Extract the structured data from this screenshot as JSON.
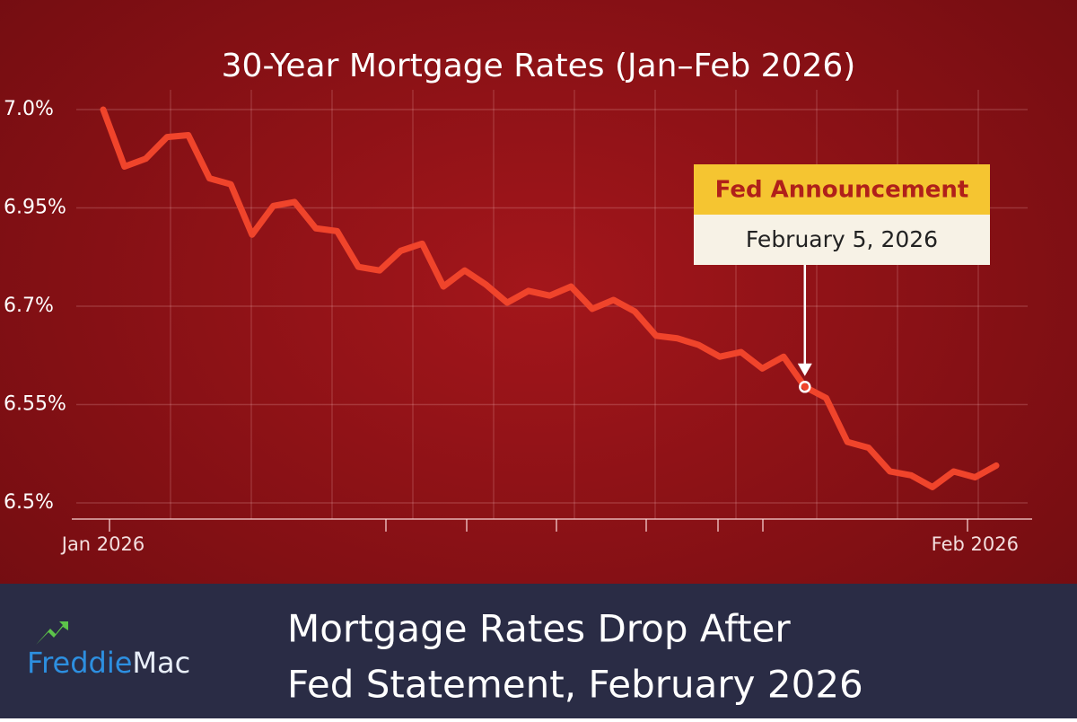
{
  "chart_data": {
    "type": "line",
    "title": "30-Year Mortgage Rates (Jan–Feb 2026)",
    "categories": [
      "Jan 2026",
      null,
      null,
      null,
      null,
      null,
      null,
      null,
      null,
      null,
      null,
      null,
      null,
      null,
      null,
      null,
      null,
      null,
      null,
      null,
      null,
      null,
      null,
      null,
      null,
      null,
      null,
      null,
      null,
      null,
      null,
      null,
      null,
      null,
      null,
      null,
      null,
      null,
      null,
      null,
      null,
      "Feb 2026",
      null
    ],
    "series": [
      {
        "name": "30-Year Mortgage Rate",
        "color": "#f0442b",
        "values": [
          7.0,
          6.971,
          6.975,
          6.986,
          6.987,
          6.965,
          6.962,
          6.882,
          6.951,
          6.953,
          6.898,
          6.891,
          6.8,
          6.791,
          6.841,
          6.859,
          6.75,
          6.791,
          6.755,
          6.709,
          6.739,
          6.727,
          6.75,
          6.696,
          6.716,
          6.692,
          6.655,
          6.651,
          6.641,
          6.623,
          6.63,
          6.605,
          6.623,
          6.577,
          6.56,
          6.531,
          6.528,
          6.516,
          6.514,
          6.508,
          6.516,
          6.513,
          6.519
        ]
      }
    ],
    "ylim": [
      6.5,
      7.0
    ],
    "yticks": [
      {
        "value": 7.0,
        "label": "7.0%"
      },
      {
        "value": 6.95,
        "label": "6.95%"
      },
      {
        "value": 6.7,
        "label": "6.7%"
      },
      {
        "value": 6.55,
        "label": "6.55%"
      },
      {
        "value": 6.5,
        "label": "6.5%"
      }
    ],
    "grid": true,
    "annotation": {
      "title": "Fed Announcement",
      "subtitle": "February 5, 2026",
      "index": 33
    }
  },
  "banner": {
    "logo": [
      "Freddie",
      "Mac"
    ],
    "headline": [
      "Mortgage Rates Drop After",
      "Fed Statement, February 2026"
    ]
  }
}
